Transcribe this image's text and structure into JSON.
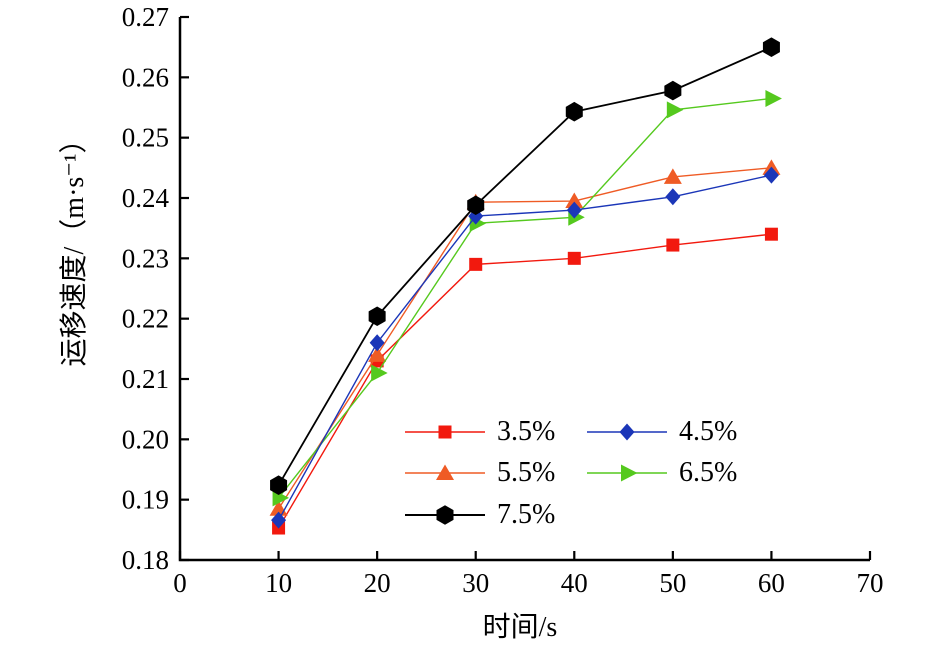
{
  "chart_data": {
    "type": "line",
    "title": "",
    "xlabel": "时间/s",
    "ylabel": "运移速度/（m·s⁻¹）",
    "xlim": [
      0,
      70
    ],
    "ylim": [
      0.18,
      0.27
    ],
    "xticks": [
      0,
      10,
      20,
      30,
      40,
      50,
      60,
      70
    ],
    "yticks": [
      0.18,
      0.19,
      0.2,
      0.21,
      0.22,
      0.23,
      0.24,
      0.25,
      0.26,
      0.27
    ],
    "grid": "off",
    "legend_position": "inside-bottom-center-two-columns",
    "x": [
      10,
      20,
      30,
      40,
      50,
      60
    ],
    "series": [
      {
        "name": "3.5%",
        "color": "#f2190e",
        "marker": "square",
        "values": [
          0.1853,
          0.213,
          0.229,
          0.23,
          0.2322,
          0.234
        ]
      },
      {
        "name": "4.5%",
        "color": "#1b36b8",
        "marker": "diamond",
        "values": [
          0.1866,
          0.216,
          0.237,
          0.238,
          0.2402,
          0.2438
        ]
      },
      {
        "name": "5.5%",
        "color": "#ef5b25",
        "marker": "triangle-up",
        "values": [
          0.1885,
          0.214,
          0.2393,
          0.2395,
          0.2435,
          0.245
        ]
      },
      {
        "name": "6.5%",
        "color": "#55c91e",
        "marker": "triangle-right",
        "values": [
          0.1903,
          0.211,
          0.2358,
          0.2368,
          0.2546,
          0.2565
        ]
      },
      {
        "name": "7.5%",
        "color": "#000000",
        "marker": "hexagon",
        "values": [
          0.1924,
          0.2204,
          0.2388,
          0.2543,
          0.2578,
          0.265
        ]
      }
    ],
    "axis_color": "#000000",
    "background_color": "#ffffff"
  }
}
